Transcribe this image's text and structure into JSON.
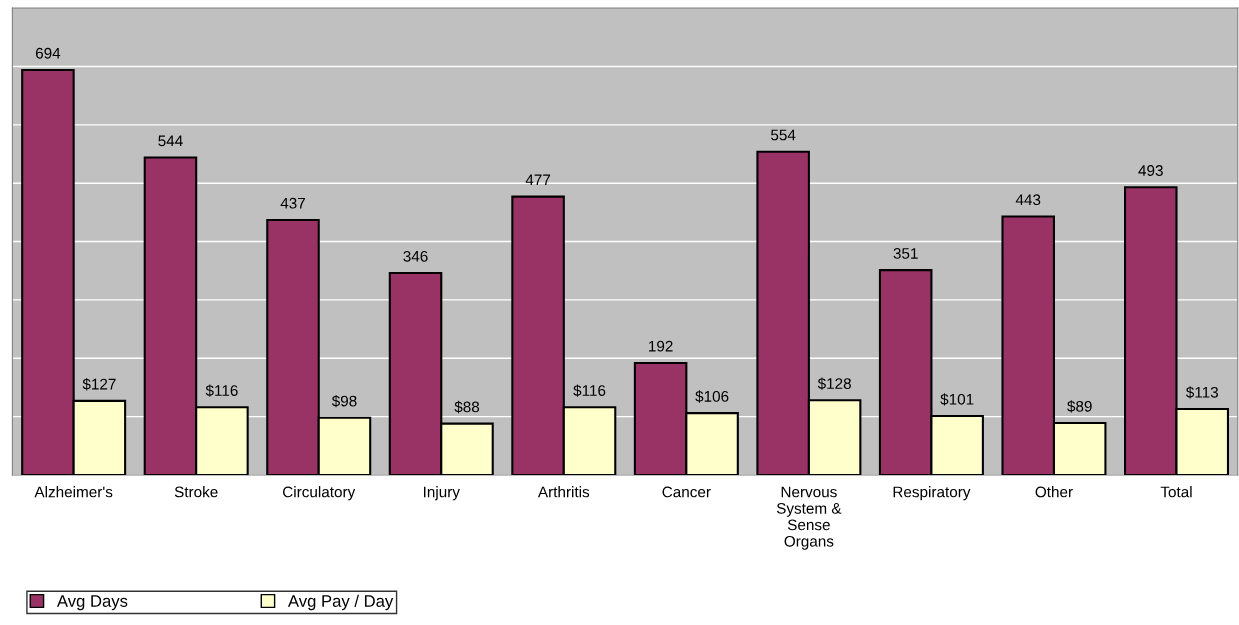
{
  "chart_data": {
    "type": "bar",
    "categories": [
      "Alzheimer's",
      "Stroke",
      "Circulatory",
      "Injury",
      "Arthritis",
      "Cancer",
      "Nervous\nSystem &\nSense\nOrgans",
      "Respiratory",
      "Other",
      "Total"
    ],
    "series": [
      {
        "name": "Avg Days",
        "color": "#993366",
        "values": [
          694,
          544,
          437,
          346,
          477,
          192,
          554,
          351,
          443,
          493
        ],
        "value_labels": [
          "694",
          "544",
          "437",
          "346",
          "477",
          "192",
          "554",
          "351",
          "443",
          "493"
        ]
      },
      {
        "name": "Avg Pay / Day",
        "color": "#ffffcc",
        "values": [
          127,
          116,
          98,
          88,
          116,
          106,
          128,
          101,
          89,
          113
        ],
        "value_labels": [
          "$127",
          "$116",
          "$98",
          "$88",
          "$116",
          "$106",
          "$128",
          "$101",
          "$89",
          "$113"
        ]
      }
    ],
    "ylim": [
      0,
      800
    ],
    "yticks": [
      {
        "value": 0,
        "label": null
      },
      {
        "value": 100,
        "label": null
      },
      {
        "value": 200,
        "label": null
      },
      {
        "value": 300,
        "label": null
      },
      {
        "value": 400,
        "label": null
      },
      {
        "value": 500,
        "label": null
      },
      {
        "value": 600,
        "label": null
      },
      {
        "value": 700,
        "label": null
      },
      {
        "value": 800,
        "label": null
      }
    ],
    "tick_labels": "x",
    "grid": "y",
    "legend": "bottom left"
  }
}
